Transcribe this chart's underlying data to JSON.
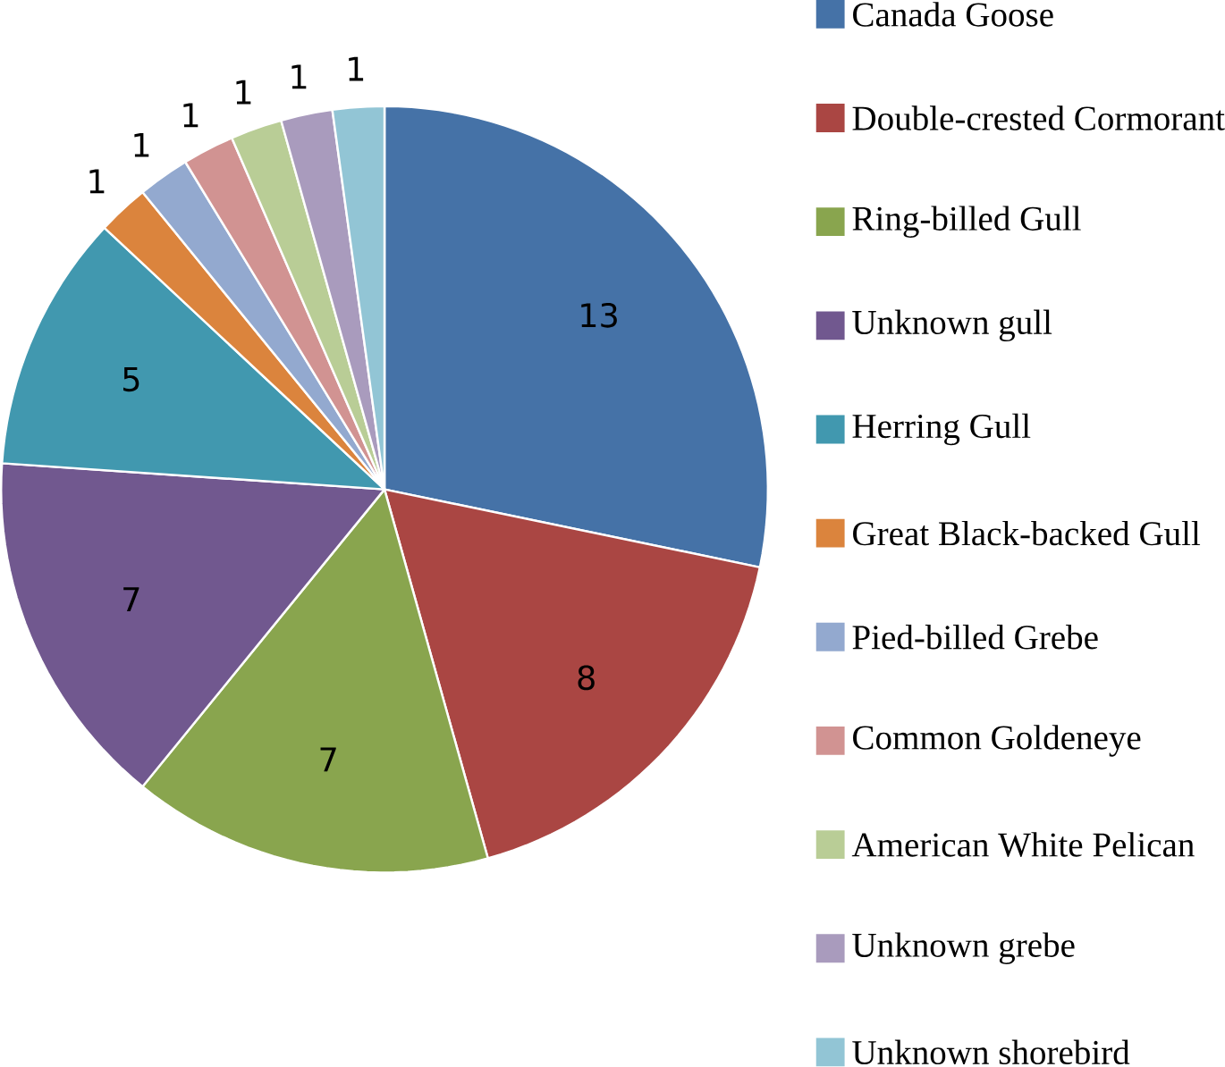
{
  "chart_data": {
    "type": "pie",
    "categories": [
      "Canada Goose",
      "Double-crested Cormorant",
      "Ring-billed Gull",
      "Unknown gull",
      "Herring Gull",
      "Great Black-backed Gull",
      "Pied-billed Grebe",
      "Common Goldeneye",
      "American White Pelican",
      "Unknown grebe",
      "Unknown shorebird"
    ],
    "values": [
      13,
      8,
      7,
      7,
      5,
      1,
      1,
      1,
      1,
      1,
      1
    ],
    "colors": [
      "#4572a7",
      "#aa4643",
      "#89a54e",
      "#71588f",
      "#4198af",
      "#db843d",
      "#93a9cf",
      "#d19392",
      "#b9cd96",
      "#a99bbd",
      "#92c5d5"
    ],
    "data_labels": true,
    "legend": "right"
  }
}
